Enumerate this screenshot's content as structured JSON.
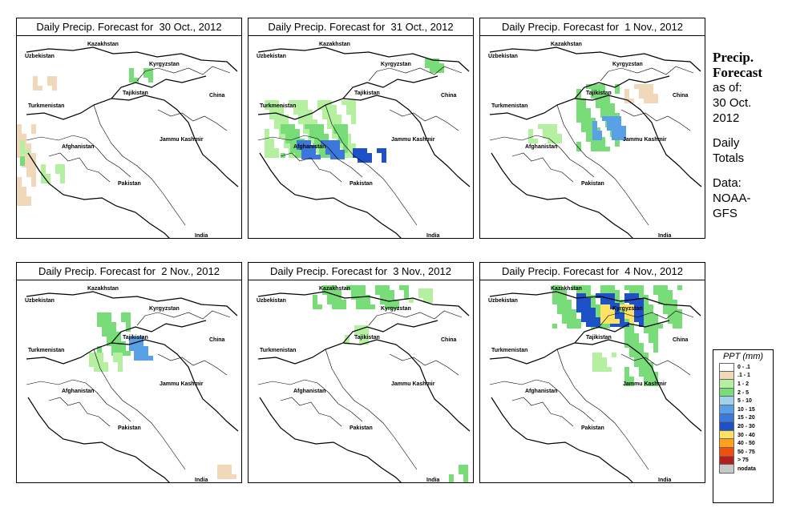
{
  "title_prefix": "Daily Precip. Forecast for ",
  "panels": [
    {
      "date": " 30 Oct., 2012"
    },
    {
      "date": " 31 Oct., 2012"
    },
    {
      "date": " 1 Nov., 2012"
    },
    {
      "date": " 2 Nov., 2012"
    },
    {
      "date": " 3 Nov., 2012"
    },
    {
      "date": " 4 Nov., 2012"
    }
  ],
  "map_labels": {
    "kazakhstan": "Kazakhstan",
    "uzbekistan": "Uzbekistan",
    "kyrgyzstan": "Kyrgyzstan",
    "tajikistan": "Tajikistan",
    "china": "China",
    "turkmenistan": "Turkmenistan",
    "jammu": "Jammu Kashmir",
    "afghanistan": "Afghanistan",
    "pakistan": "Pakistan",
    "india": "India"
  },
  "side": {
    "title1": "Precip.",
    "title2": "Forecast",
    "asof": "as of:",
    "date1": "30 Oct.",
    "date2": "2012",
    "totals1": "Daily",
    "totals2": "Totals",
    "data1": "Data:",
    "data2": "NOAA-",
    "data3": "GFS"
  },
  "legend": {
    "title": "PPT (mm)",
    "items": [
      {
        "label": "0 - .1",
        "color": "#ffffff"
      },
      {
        "label": ".1 - 1",
        "color": "#f0d8b8"
      },
      {
        "label": "1 - 2",
        "color": "#b4f0a0"
      },
      {
        "label": "2 - 5",
        "color": "#78dc78"
      },
      {
        "label": "5 - 10",
        "color": "#a0d2f0"
      },
      {
        "label": "10 - 15",
        "color": "#5aa0e6"
      },
      {
        "label": "15 - 20",
        "color": "#3c78dc"
      },
      {
        "label": "20 - 30",
        "color": "#1e50c8"
      },
      {
        "label": "30 - 40",
        "color": "#ffe164"
      },
      {
        "label": "40 - 50",
        "color": "#ffa01e"
      },
      {
        "label": "50 - 75",
        "color": "#f0500a"
      },
      {
        "label": "> 75",
        "color": "#b41e1e"
      },
      {
        "label": "nodata",
        "color": "#c8c8c8"
      }
    ]
  }
}
